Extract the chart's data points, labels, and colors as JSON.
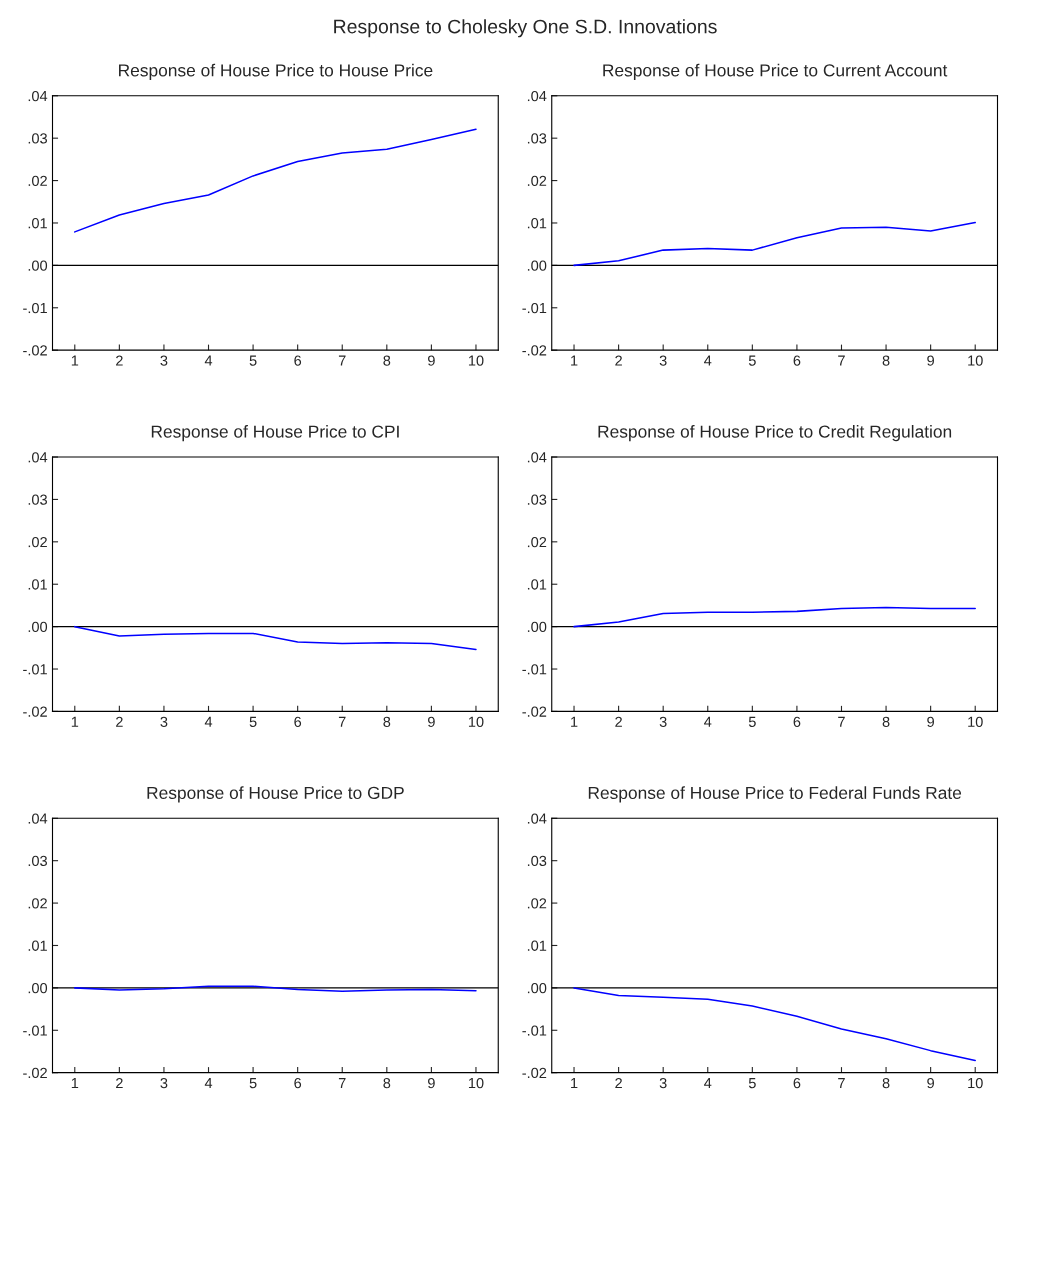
{
  "chart_data": [
    {
      "type": "line",
      "title": "Response of House Price to House Price",
      "x": [
        1,
        2,
        3,
        4,
        5,
        6,
        7,
        8,
        9,
        10
      ],
      "series": [
        {
          "color": "#0000ff",
          "values": [
            0.0079,
            0.0119,
            0.0146,
            0.0166,
            0.0211,
            0.0245,
            0.0265,
            0.0274,
            0.0297,
            0.0321
          ]
        }
      ],
      "xlim": [
        0.5,
        10.5
      ],
      "xticks": [
        1,
        2,
        3,
        4,
        5,
        6,
        7,
        8,
        9,
        10
      ],
      "ylim": [
        -0.02,
        0.04
      ],
      "yticks": [
        {
          "value": 0.04,
          "label": ".04"
        },
        {
          "value": 0.03,
          "label": ".03"
        },
        {
          "value": 0.02,
          "label": ".02"
        },
        {
          "value": 0.01,
          "label": ".01"
        },
        {
          "value": 0,
          "label": ".00"
        },
        {
          "value": -0.01,
          "label": "-.01"
        },
        {
          "value": -0.02,
          "label": "-.02"
        }
      ],
      "ref_lines": [
        {
          "axis": "y",
          "value": 0,
          "color": "#000000"
        }
      ],
      "grid": false,
      "legend": false,
      "annotations": [
        "Response to Cholesky One S.D. Innovations"
      ]
    },
    {
      "type": "line",
      "title": "Response of House Price to Current Account",
      "x": [
        1,
        2,
        3,
        4,
        5,
        6,
        7,
        8,
        9,
        10
      ],
      "series": [
        {
          "color": "#0000ff",
          "values": [
            0,
            0.0011,
            0.0036,
            0.004,
            0.0036,
            0.0065,
            0.0088,
            0.009,
            0.0081,
            0.0101
          ]
        }
      ],
      "xlim": [
        0.5,
        10.5
      ],
      "xticks": [
        1,
        2,
        3,
        4,
        5,
        6,
        7,
        8,
        9,
        10
      ],
      "ylim": [
        -0.02,
        0.04
      ],
      "yticks": [
        {
          "value": 0.04,
          "label": ".04"
        },
        {
          "value": 0.03,
          "label": ".03"
        },
        {
          "value": 0.02,
          "label": ".02"
        },
        {
          "value": 0.01,
          "label": ".01"
        },
        {
          "value": 0,
          "label": ".00"
        },
        {
          "value": -0.01,
          "label": "-.01"
        },
        {
          "value": -0.02,
          "label": "-.02"
        }
      ],
      "ref_lines": [
        {
          "axis": "y",
          "value": 0,
          "color": "#000000"
        }
      ],
      "grid": false,
      "legend": false
    },
    {
      "type": "line",
      "title": "Response of House Price to CPI",
      "x": [
        1,
        2,
        3,
        4,
        5,
        6,
        7,
        8,
        9,
        10
      ],
      "series": [
        {
          "color": "#0000ff",
          "values": [
            0,
            -0.0022,
            -0.0018,
            -0.0016,
            -0.0016,
            -0.0036,
            -0.004,
            -0.0038,
            -0.004,
            -0.0054
          ]
        }
      ],
      "xlim": [
        0.5,
        10.5
      ],
      "xticks": [
        1,
        2,
        3,
        4,
        5,
        6,
        7,
        8,
        9,
        10
      ],
      "ylim": [
        -0.02,
        0.04
      ],
      "yticks": [
        {
          "value": 0.04,
          "label": ".04"
        },
        {
          "value": 0.03,
          "label": ".03"
        },
        {
          "value": 0.02,
          "label": ".02"
        },
        {
          "value": 0.01,
          "label": ".01"
        },
        {
          "value": 0,
          "label": ".00"
        },
        {
          "value": -0.01,
          "label": "-.01"
        },
        {
          "value": -0.02,
          "label": "-.02"
        }
      ],
      "ref_lines": [
        {
          "axis": "y",
          "value": 0,
          "color": "#000000"
        }
      ],
      "grid": false,
      "legend": false
    },
    {
      "type": "line",
      "title": "Response of House Price to Credit Regulation",
      "x": [
        1,
        2,
        3,
        4,
        5,
        6,
        7,
        8,
        9,
        10
      ],
      "series": [
        {
          "color": "#0000ff",
          "values": [
            0,
            0.0011,
            0.0031,
            0.0034,
            0.0034,
            0.0036,
            0.0043,
            0.0045,
            0.0043,
            0.0043
          ]
        }
      ],
      "xlim": [
        0.5,
        10.5
      ],
      "xticks": [
        1,
        2,
        3,
        4,
        5,
        6,
        7,
        8,
        9,
        10
      ],
      "ylim": [
        -0.02,
        0.04
      ],
      "yticks": [
        {
          "value": 0.04,
          "label": ".04"
        },
        {
          "value": 0.03,
          "label": ".03"
        },
        {
          "value": 0.02,
          "label": ".02"
        },
        {
          "value": 0.01,
          "label": ".01"
        },
        {
          "value": 0,
          "label": ".00"
        },
        {
          "value": -0.01,
          "label": "-.01"
        },
        {
          "value": -0.02,
          "label": "-.02"
        }
      ],
      "ref_lines": [
        {
          "axis": "y",
          "value": 0,
          "color": "#000000"
        }
      ],
      "grid": false,
      "legend": false
    },
    {
      "type": "line",
      "title": "Response of House Price to GDP",
      "x": [
        1,
        2,
        3,
        4,
        5,
        6,
        7,
        8,
        9,
        10
      ],
      "series": [
        {
          "color": "#0000ff",
          "values": [
            0,
            -0.0005,
            -0.0002,
            0.0004,
            0.0004,
            -0.0004,
            -0.0008,
            -0.0005,
            -0.0004,
            -0.0007
          ]
        }
      ],
      "xlim": [
        0.5,
        10.5
      ],
      "xticks": [
        1,
        2,
        3,
        4,
        5,
        6,
        7,
        8,
        9,
        10
      ],
      "ylim": [
        -0.02,
        0.04
      ],
      "yticks": [
        {
          "value": 0.04,
          "label": ".04"
        },
        {
          "value": 0.03,
          "label": ".03"
        },
        {
          "value": 0.02,
          "label": ".02"
        },
        {
          "value": 0.01,
          "label": ".01"
        },
        {
          "value": 0,
          "label": ".00"
        },
        {
          "value": -0.01,
          "label": "-.01"
        },
        {
          "value": -0.02,
          "label": "-.02"
        }
      ],
      "ref_lines": [
        {
          "axis": "y",
          "value": 0,
          "color": "#000000"
        }
      ],
      "grid": false,
      "legend": false
    },
    {
      "type": "line",
      "title": "Response of House Price to Federal Funds Rate",
      "x": [
        1,
        2,
        3,
        4,
        5,
        6,
        7,
        8,
        9,
        10
      ],
      "series": [
        {
          "color": "#0000ff",
          "values": [
            0,
            -0.0018,
            -0.0022,
            -0.0027,
            -0.0043,
            -0.0067,
            -0.0097,
            -0.012,
            -0.0148,
            -0.0171
          ]
        }
      ],
      "xlim": [
        0.5,
        10.5
      ],
      "xticks": [
        1,
        2,
        3,
        4,
        5,
        6,
        7,
        8,
        9,
        10
      ],
      "ylim": [
        -0.02,
        0.04
      ],
      "yticks": [
        {
          "value": 0.04,
          "label": ".04"
        },
        {
          "value": 0.03,
          "label": ".03"
        },
        {
          "value": 0.02,
          "label": ".02"
        },
        {
          "value": 0.01,
          "label": ".01"
        },
        {
          "value": 0,
          "label": ".00"
        },
        {
          "value": -0.01,
          "label": "-.01"
        },
        {
          "value": -0.02,
          "label": "-.02"
        }
      ],
      "ref_lines": [
        {
          "axis": "y",
          "value": 0,
          "color": "#000000"
        }
      ],
      "grid": false,
      "legend": false
    }
  ]
}
